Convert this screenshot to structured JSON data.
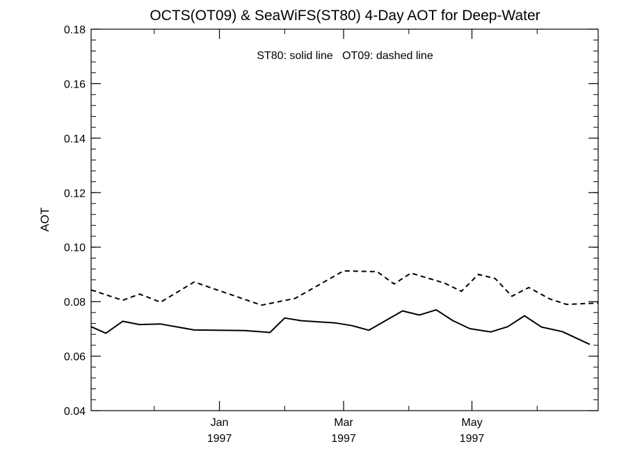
{
  "chart_data": {
    "type": "line",
    "title": "OCTS(OT09) & SeaWiFS(ST80) 4-Day AOT for Deep-Water",
    "annotation": "ST80: solid line   OT09: dashed line",
    "ylabel": "AOT",
    "ylim": [
      0.04,
      0.18
    ],
    "y_ticks": [
      "0.04",
      "0.06",
      "0.08",
      "0.10",
      "0.12",
      "0.14",
      "0.16",
      "0.18"
    ],
    "x_ticks": [
      {
        "label": "Jan",
        "year": "1997",
        "date": "1997-01-01"
      },
      {
        "label": "Mar",
        "year": "1997",
        "date": "1997-03-01"
      },
      {
        "label": "May",
        "year": "1997",
        "date": "1997-05-01"
      }
    ],
    "xlim": [
      "1996-11-01",
      "1997-06-30"
    ],
    "grid": false,
    "series": [
      {
        "name": "ST80",
        "style": "solid",
        "points": [
          [
            "1996-11-01",
            0.0708
          ],
          [
            "1996-11-08",
            0.0684
          ],
          [
            "1996-11-16",
            0.0728
          ],
          [
            "1996-11-24",
            0.0716
          ],
          [
            "1996-12-04",
            0.0718
          ],
          [
            "1996-12-20",
            0.0696
          ],
          [
            "1997-01-13",
            0.0694
          ],
          [
            "1997-01-25",
            0.0687
          ],
          [
            "1997-02-01",
            0.074
          ],
          [
            "1997-02-09",
            0.073
          ],
          [
            "1997-02-25",
            0.0722
          ],
          [
            "1997-03-05",
            0.0712
          ],
          [
            "1997-03-13",
            0.0695
          ],
          [
            "1997-03-29",
            0.0766
          ],
          [
            "1997-04-06",
            0.0751
          ],
          [
            "1997-04-14",
            0.077
          ],
          [
            "1997-04-22",
            0.073
          ],
          [
            "1997-04-30",
            0.0701
          ],
          [
            "1997-05-10",
            0.0689
          ],
          [
            "1997-05-18",
            0.0708
          ],
          [
            "1997-05-26",
            0.0748
          ],
          [
            "1997-06-03",
            0.0707
          ],
          [
            "1997-06-13",
            0.069
          ],
          [
            "1997-06-26",
            0.0643
          ]
        ]
      },
      {
        "name": "OT09",
        "style": "dashed",
        "points": [
          [
            "1996-11-01",
            0.0843
          ],
          [
            "1996-11-16",
            0.0805
          ],
          [
            "1996-11-24",
            0.0828
          ],
          [
            "1996-12-04",
            0.0798
          ],
          [
            "1996-12-20",
            0.0872
          ],
          [
            "1997-01-21",
            0.0787
          ],
          [
            "1997-02-06",
            0.0812
          ],
          [
            "1997-03-01",
            0.0913
          ],
          [
            "1997-03-17",
            0.091
          ],
          [
            "1997-03-25",
            0.0865
          ],
          [
            "1997-04-02",
            0.0905
          ],
          [
            "1997-04-18",
            0.0868
          ],
          [
            "1997-04-26",
            0.0838
          ],
          [
            "1997-05-04",
            0.09
          ],
          [
            "1997-05-12",
            0.0885
          ],
          [
            "1997-05-20",
            0.082
          ],
          [
            "1997-05-28",
            0.0852
          ],
          [
            "1997-06-07",
            0.081
          ],
          [
            "1997-06-15",
            0.079
          ],
          [
            "1997-06-30",
            0.0795
          ]
        ]
      }
    ]
  }
}
